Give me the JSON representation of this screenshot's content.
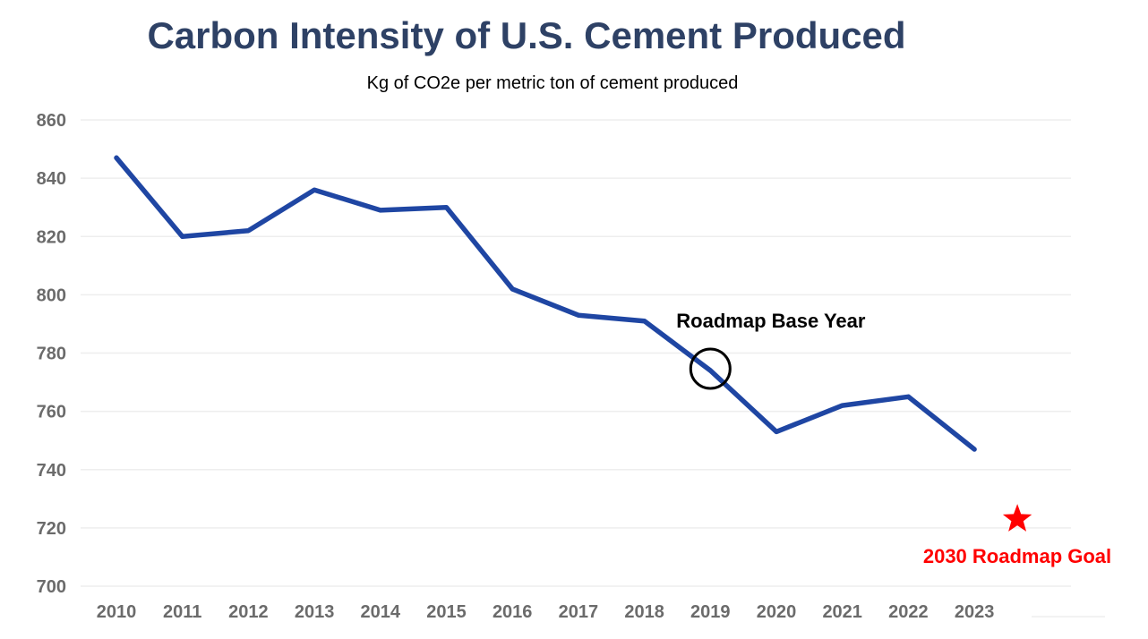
{
  "chart_data": {
    "type": "line",
    "title": "Carbon Intensity of U.S. Cement Produced",
    "subtitle": "Kg of CO2e per metric ton of cement produced",
    "xlabel": "",
    "ylabel": "",
    "categories": [
      "2010",
      "2011",
      "2012",
      "2013",
      "2014",
      "2015",
      "2016",
      "2017",
      "2018",
      "2019",
      "2020",
      "2021",
      "2022",
      "2023"
    ],
    "series": [
      {
        "name": "Carbon intensity (kg CO2e / metric ton)",
        "color": "#1f46a3",
        "values": [
          847,
          820,
          822,
          836,
          829,
          830,
          802,
          793,
          791,
          774,
          753,
          762,
          765,
          747
        ]
      }
    ],
    "ylim": [
      700,
      860
    ],
    "yticks": [
      860,
      840,
      820,
      800,
      780,
      760,
      740,
      720,
      700
    ],
    "grid": true,
    "legend": "none",
    "annotations": [
      {
        "id": "base-year",
        "text": "Roadmap Base Year",
        "category": "2019",
        "value": 774,
        "marker": "circle",
        "color": "#000000"
      },
      {
        "id": "goal",
        "text": "2030 Roadmap Goal",
        "position_after_category": "2023",
        "value": 723,
        "marker": "star",
        "color": "#ff0000"
      }
    ]
  }
}
